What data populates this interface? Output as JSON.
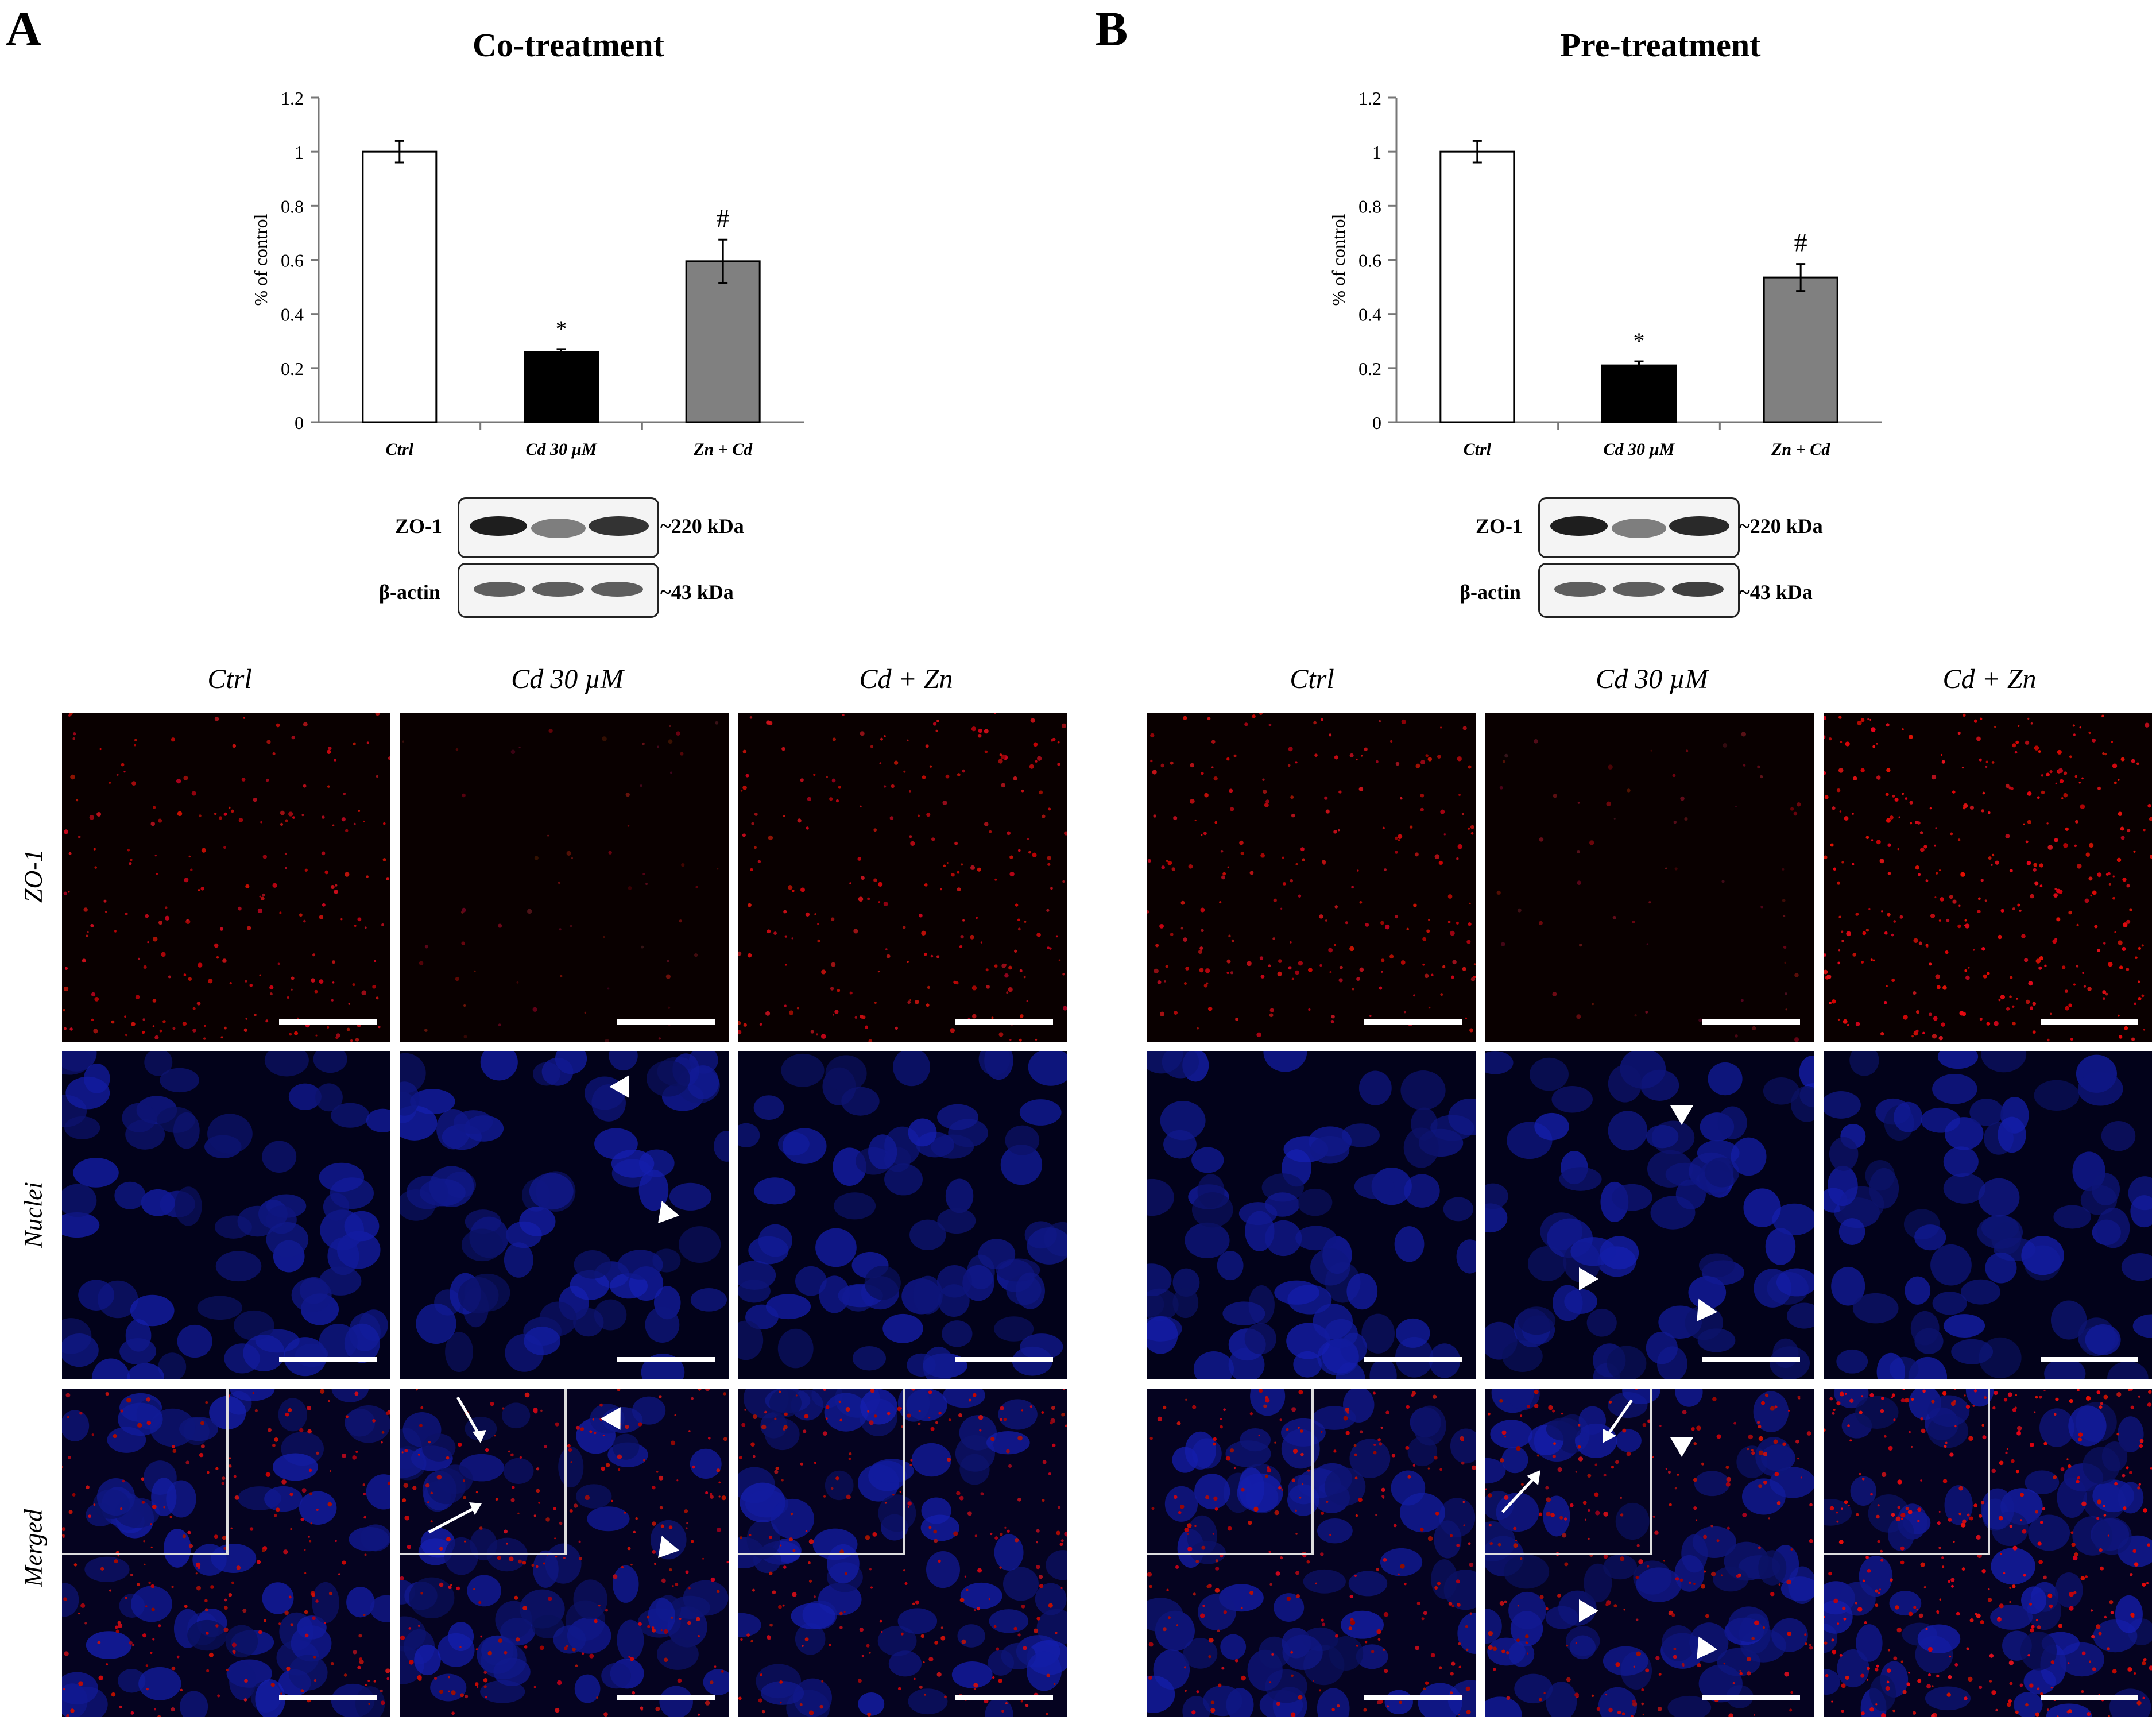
{
  "panels": [
    {
      "letter": "A",
      "title": "Co-treatment",
      "chart": {
        "type": "bar",
        "ylabel": "% of control",
        "yticks": [
          "0",
          "0.2",
          "0.4",
          "0.6",
          "0.8",
          "1",
          "1.2"
        ],
        "ylim": [
          0,
          1.2
        ],
        "categories": [
          "Ctrl",
          "Cd 30 µM",
          "Zn + Cd"
        ],
        "values": [
          1.0,
          0.26,
          0.595
        ],
        "errors": [
          0.04,
          0.01,
          0.08
        ],
        "significance": [
          "",
          "*",
          "#"
        ],
        "colors": [
          "#ffffff",
          "#000000",
          "#808080"
        ]
      },
      "blot": {
        "rows": [
          {
            "label": "ZO-1",
            "size": "~220 kDa",
            "intensities": [
              1.0,
              0.55,
              0.9
            ]
          },
          {
            "label": "β-actin",
            "size": "~43 kDa",
            "intensities": [
              0.7,
              0.7,
              0.7
            ]
          }
        ]
      },
      "micro_columns": [
        "Ctrl",
        "Cd 30 µM",
        "Cd + Zn"
      ]
    },
    {
      "letter": "B",
      "title": "Pre-treatment",
      "chart": {
        "type": "bar",
        "ylabel": "% of control",
        "yticks": [
          "0",
          "0.2",
          "0.4",
          "0.6",
          "0.8",
          "1",
          "1.2"
        ],
        "ylim": [
          0,
          1.2
        ],
        "categories": [
          "Ctrl",
          "Cd 30 µM",
          "Zn + Cd"
        ],
        "values": [
          1.0,
          0.21,
          0.535
        ],
        "errors": [
          0.04,
          0.015,
          0.05
        ],
        "significance": [
          "",
          "*",
          "#"
        ],
        "colors": [
          "#ffffff",
          "#000000",
          "#808080"
        ]
      },
      "blot": {
        "rows": [
          {
            "label": "ZO-1",
            "size": "~220 kDa",
            "intensities": [
              1.0,
              0.55,
              0.95
            ]
          },
          {
            "label": "β-actin",
            "size": "~43 kDa",
            "intensities": [
              0.7,
              0.7,
              0.85
            ]
          }
        ]
      },
      "micro_columns": [
        "Ctrl",
        "Cd 30 µM",
        "Cd + Zn"
      ]
    }
  ],
  "micro_rows": [
    "ZO-1",
    "Nuclei",
    "Merged"
  ],
  "chart_data": [
    {
      "type": "bar",
      "title": "Co-treatment",
      "ylabel": "% of control",
      "categories": [
        "Ctrl",
        "Cd 30 µM",
        "Zn + Cd"
      ],
      "values": [
        1.0,
        0.26,
        0.595
      ],
      "error_bars": [
        0.04,
        0.01,
        0.08
      ],
      "ylim": [
        0,
        1.2
      ]
    },
    {
      "type": "bar",
      "title": "Pre-treatment",
      "ylabel": "% of control",
      "categories": [
        "Ctrl",
        "Cd 30 µM",
        "Zn + Cd"
      ],
      "values": [
        1.0,
        0.21,
        0.535
      ],
      "error_bars": [
        0.04,
        0.015,
        0.05
      ],
      "ylim": [
        0,
        1.2
      ]
    }
  ]
}
